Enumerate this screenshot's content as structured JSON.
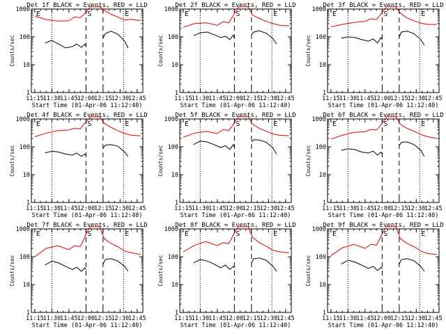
{
  "chart_data": [
    {
      "title": "Det 1f BLACK = Events, RED = LLD",
      "type": "line",
      "xlabel": "Start Time (01-Apr-06 11:12:40)",
      "ylabel": "Counts/sec",
      "xticks": [
        "11:15",
        "11:30",
        "11:45",
        "12:00",
        "12:15",
        "12:30",
        "12:45"
      ],
      "yticks": [
        "1",
        "10",
        "100",
        "1000"
      ],
      "ylim": [
        1,
        1000
      ],
      "yscale": "log",
      "markers": [
        {
          "label": "E",
          "x": "11:15"
        },
        {
          "label": "S",
          "x": "12:00"
        },
        {
          "label": "E",
          "x": "12:33"
        }
      ],
      "series": [
        {
          "color": "#e00000",
          "x": [
            "11:15",
            "11:25",
            "11:35",
            "11:45",
            "11:50",
            "11:55",
            "11:58",
            "12:01",
            "12:04",
            "12:08",
            "12:12",
            "12:16",
            "12:22",
            "12:28",
            "12:34",
            "12:40",
            "12:48"
          ],
          "y": [
            560,
            420,
            370,
            380,
            520,
            490,
            640,
            850,
            1200,
            1200,
            1200,
            900,
            650,
            520,
            400,
            430,
            380
          ]
        },
        {
          "color": "#000000",
          "x": [
            "11:24",
            "11:30",
            "11:36",
            "11:42",
            "11:48",
            "11:52",
            "11:56",
            "11:59",
            "12:00",
            "12:15",
            "12:17",
            "12:22",
            "12:28",
            "12:34",
            "12:37"
          ],
          "y": [
            60,
            75,
            55,
            40,
            45,
            55,
            42,
            55,
            45,
            90,
            130,
            160,
            125,
            70,
            40
          ]
        }
      ]
    },
    {
      "title": "Det 2f BLACK = Events, RED = LLD",
      "type": "line",
      "xlabel": "Start Time (01-Apr-06 11:12:40)",
      "ylabel": "Counts/sec",
      "xticks": [
        "11:15",
        "11:30",
        "11:45",
        "12:00",
        "12:15",
        "12:30",
        "12:45"
      ],
      "yticks": [
        "1",
        "10",
        "100",
        "1000"
      ],
      "ylim": [
        1,
        1000
      ],
      "yscale": "log",
      "markers": [
        {
          "label": "E",
          "x": "11:15"
        },
        {
          "label": "S",
          "x": "12:00"
        },
        {
          "label": "E",
          "x": "12:33"
        }
      ],
      "series": [
        {
          "color": "#e00000",
          "x": [
            "11:15",
            "11:25",
            "11:35",
            "11:45",
            "11:50",
            "11:55",
            "11:58",
            "12:01",
            "12:04",
            "12:08",
            "12:12",
            "12:16",
            "12:22",
            "12:28",
            "12:34",
            "12:40",
            "12:48"
          ],
          "y": [
            220,
            300,
            320,
            260,
            350,
            320,
            500,
            800,
            1200,
            1200,
            1200,
            600,
            460,
            360,
            300,
            260,
            250
          ]
        },
        {
          "color": "#000000",
          "x": [
            "11:24",
            "11:30",
            "11:36",
            "11:42",
            "11:48",
            "11:52",
            "11:56",
            "11:59",
            "12:00",
            "12:15",
            "12:17",
            "12:22",
            "12:28",
            "12:34",
            "12:37"
          ],
          "y": [
            110,
            140,
            150,
            120,
            95,
            105,
            80,
            115,
            90,
            120,
            150,
            165,
            135,
            85,
            55
          ]
        }
      ]
    },
    {
      "title": "Det 3f BLACK = Events, RED = LLD",
      "type": "line",
      "xlabel": "Start Time (01-Apr-06 11:12:40)",
      "ylabel": "Counts/sec",
      "xticks": [
        "11:15",
        "11:30",
        "11:45",
        "12:00",
        "12:15",
        "12:30",
        "12:45"
      ],
      "yticks": [
        "1",
        "10",
        "100",
        "1000"
      ],
      "ylim": [
        1,
        1000
      ],
      "yscale": "log",
      "markers": [
        {
          "label": "E",
          "x": "11:15"
        },
        {
          "label": "S",
          "x": "12:00"
        },
        {
          "label": "E",
          "x": "12:33"
        }
      ],
      "series": [
        {
          "color": "#e00000",
          "x": [
            "11:15",
            "11:25",
            "11:35",
            "11:45",
            "11:50",
            "11:55",
            "11:58",
            "12:01",
            "12:04",
            "12:08",
            "12:12",
            "12:16",
            "12:22",
            "12:28",
            "12:34",
            "12:40",
            "12:48"
          ],
          "y": [
            230,
            280,
            330,
            360,
            450,
            420,
            600,
            850,
            1200,
            1200,
            1200,
            700,
            480,
            380,
            310,
            280,
            280
          ]
        },
        {
          "color": "#000000",
          "x": [
            "11:24",
            "11:30",
            "11:36",
            "11:42",
            "11:48",
            "11:52",
            "11:56",
            "11:59",
            "12:00",
            "12:15",
            "12:17",
            "12:22",
            "12:28",
            "12:34",
            "12:37"
          ],
          "y": [
            90,
            100,
            95,
            80,
            70,
            85,
            60,
            95,
            80,
            100,
            150,
            160,
            130,
            80,
            50
          ]
        }
      ]
    },
    {
      "title": "Det 4f BLACK = Events, RED = LLD",
      "type": "line",
      "xlabel": "Start Time (01-Apr-06 11:12:40)",
      "ylabel": "Counts/sec",
      "xticks": [
        "11:15",
        "11:30",
        "11:45",
        "12:00",
        "12:15",
        "12:30",
        "12:45"
      ],
      "yticks": [
        "1",
        "10",
        "100",
        "1000"
      ],
      "ylim": [
        1,
        1000
      ],
      "yscale": "log",
      "markers": [
        {
          "label": "E",
          "x": "11:15"
        },
        {
          "label": "S",
          "x": "12:00"
        },
        {
          "label": "E",
          "x": "12:33"
        }
      ],
      "series": [
        {
          "color": "#e00000",
          "x": [
            "11:15",
            "11:25",
            "11:35",
            "11:45",
            "11:50",
            "11:55",
            "11:58",
            "12:01",
            "12:04",
            "12:08",
            "12:12",
            "12:16",
            "12:22",
            "12:28",
            "12:34",
            "12:40",
            "12:48"
          ],
          "y": [
            230,
            310,
            380,
            400,
            470,
            440,
            650,
            850,
            1200,
            1200,
            1200,
            700,
            500,
            380,
            300,
            260,
            250
          ]
        },
        {
          "color": "#000000",
          "x": [
            "11:24",
            "11:30",
            "11:36",
            "11:42",
            "11:48",
            "11:52",
            "11:56",
            "11:59",
            "12:00",
            "12:15",
            "12:17",
            "12:22",
            "12:28",
            "12:34",
            "12:37"
          ],
          "y": [
            60,
            70,
            65,
            55,
            50,
            60,
            45,
            55,
            50,
            90,
            115,
            120,
            105,
            65,
            45
          ]
        }
      ]
    },
    {
      "title": "Det 5f BLACK = Events, RED = LLD",
      "type": "line",
      "xlabel": "Start Time (01-Apr-06 11:12:40)",
      "ylabel": "Counts/sec",
      "xticks": [
        "11:15",
        "11:30",
        "11:45",
        "12:00",
        "12:15",
        "12:30",
        "12:45"
      ],
      "yticks": [
        "1",
        "10",
        "100",
        "1000"
      ],
      "ylim": [
        1,
        1000
      ],
      "yscale": "log",
      "markers": [
        {
          "label": "E",
          "x": "11:15"
        },
        {
          "label": "S",
          "x": "12:00"
        },
        {
          "label": "E",
          "x": "12:33"
        }
      ],
      "series": [
        {
          "color": "#e00000",
          "x": [
            "11:15",
            "11:25",
            "11:35",
            "11:45",
            "11:50",
            "11:55",
            "11:58",
            "12:01",
            "12:04",
            "12:08",
            "12:12",
            "12:16",
            "12:22",
            "12:28",
            "12:34",
            "12:40",
            "12:48"
          ],
          "y": [
            220,
            310,
            360,
            300,
            420,
            380,
            560,
            850,
            1200,
            1200,
            1200,
            650,
            460,
            360,
            290,
            260,
            250
          ]
        },
        {
          "color": "#000000",
          "x": [
            "11:24",
            "11:30",
            "11:36",
            "11:42",
            "11:48",
            "11:52",
            "11:56",
            "11:59",
            "12:00",
            "12:15",
            "12:17",
            "12:22",
            "12:28",
            "12:34",
            "12:37"
          ],
          "y": [
            120,
            160,
            150,
            120,
            95,
            110,
            80,
            120,
            95,
            150,
            180,
            175,
            145,
            90,
            55
          ]
        }
      ]
    },
    {
      "title": "Det 6f BLACK = Events, RED = LLD",
      "type": "line",
      "xlabel": "Start Time (01-Apr-06 11:12:40)",
      "ylabel": "Counts/sec",
      "xticks": [
        "11:15",
        "11:30",
        "11:45",
        "12:00",
        "12:15",
        "12:30",
        "12:45"
      ],
      "yticks": [
        "1",
        "10",
        "100",
        "1000"
      ],
      "ylim": [
        1,
        1000
      ],
      "yscale": "log",
      "markers": [
        {
          "label": "E",
          "x": "11:15"
        },
        {
          "label": "S",
          "x": "12:00"
        },
        {
          "label": "E",
          "x": "12:33"
        }
      ],
      "series": [
        {
          "color": "#e00000",
          "x": [
            "11:15",
            "11:25",
            "11:35",
            "11:45",
            "11:50",
            "11:55",
            "11:58",
            "12:01",
            "12:04",
            "12:08",
            "12:12",
            "12:16",
            "12:22",
            "12:28",
            "12:34",
            "12:40",
            "12:48"
          ],
          "y": [
            190,
            260,
            330,
            350,
            420,
            400,
            550,
            800,
            1200,
            1200,
            1200,
            650,
            460,
            360,
            280,
            230,
            200
          ]
        },
        {
          "color": "#000000",
          "x": [
            "11:24",
            "11:30",
            "11:36",
            "11:42",
            "11:48",
            "11:52",
            "11:56",
            "11:59",
            "12:00",
            "12:15",
            "12:17",
            "12:22",
            "12:28",
            "12:34",
            "12:37"
          ],
          "y": [
            75,
            85,
            80,
            65,
            60,
            70,
            50,
            65,
            55,
            110,
            145,
            150,
            120,
            75,
            45
          ]
        }
      ]
    },
    {
      "title": "Det 7f BLACK = Events, RED = LLD",
      "type": "line",
      "xlabel": "Start Time (01-Apr-06 11:12:40)",
      "ylabel": "Counts/sec",
      "xticks": [
        "11:15",
        "11:30",
        "11:45",
        "12:00",
        "12:15",
        "12:30",
        "12:45"
      ],
      "yticks": [
        "1",
        "10",
        "100",
        "1000"
      ],
      "ylim": [
        1,
        1000
      ],
      "yscale": "log",
      "markers": [
        {
          "label": "E",
          "x": "11:15"
        },
        {
          "label": "S",
          "x": "12:00"
        },
        {
          "label": "E",
          "x": "12:33"
        }
      ],
      "series": [
        {
          "color": "#e00000",
          "x": [
            "11:15",
            "11:25",
            "11:35",
            "11:45",
            "11:50",
            "11:55",
            "11:58",
            "12:01",
            "12:04",
            "12:08",
            "12:12",
            "12:16",
            "12:22",
            "12:28",
            "12:34",
            "12:40",
            "12:48"
          ],
          "y": [
            100,
            200,
            250,
            180,
            250,
            230,
            400,
            800,
            1200,
            1200,
            1200,
            450,
            300,
            230,
            160,
            140,
            120
          ]
        },
        {
          "color": "#000000",
          "x": [
            "11:24",
            "11:30",
            "11:36",
            "11:42",
            "11:48",
            "11:52",
            "11:56",
            "11:59",
            "12:00",
            "12:15",
            "12:17",
            "12:22",
            "12:28",
            "12:34",
            "12:37"
          ],
          "y": [
            50,
            70,
            60,
            45,
            35,
            42,
            30,
            40,
            35,
            55,
            80,
            85,
            70,
            45,
            30
          ]
        }
      ]
    },
    {
      "title": "Det 8f BLACK = Events, RED = LLD",
      "type": "line",
      "xlabel": "Start Time (01-Apr-06 11:12:40)",
      "ylabel": "Counts/sec",
      "xticks": [
        "11:15",
        "11:30",
        "11:45",
        "12:00",
        "12:15",
        "12:30",
        "12:45"
      ],
      "yticks": [
        "1",
        "10",
        "100",
        "1000"
      ],
      "ylim": [
        1,
        1000
      ],
      "yscale": "log",
      "markers": [
        {
          "label": "E",
          "x": "11:15"
        },
        {
          "label": "S",
          "x": "12:00"
        },
        {
          "label": "E",
          "x": "12:33"
        }
      ],
      "series": [
        {
          "color": "#e00000",
          "x": [
            "11:15",
            "11:25",
            "11:35",
            "11:45",
            "11:50",
            "11:55",
            "11:58",
            "12:01",
            "12:04",
            "12:08",
            "12:12",
            "12:16",
            "12:22",
            "12:28",
            "12:34",
            "12:40",
            "12:48"
          ],
          "y": [
            150,
            260,
            350,
            250,
            320,
            300,
            500,
            850,
            1200,
            1200,
            1200,
            500,
            320,
            240,
            170,
            150,
            140
          ]
        },
        {
          "color": "#000000",
          "x": [
            "11:24",
            "11:30",
            "11:36",
            "11:42",
            "11:48",
            "11:52",
            "11:56",
            "11:59",
            "12:00",
            "12:15",
            "12:17",
            "12:22",
            "12:28",
            "12:34",
            "12:37"
          ],
          "y": [
            60,
            80,
            70,
            55,
            40,
            50,
            35,
            45,
            40,
            60,
            85,
            90,
            75,
            45,
            30
          ]
        }
      ]
    },
    {
      "title": "Det 9f BLACK = Events, RED = LLD",
      "type": "line",
      "xlabel": "Start Time (01-Apr-06 11:12:40)",
      "ylabel": "Counts/sec",
      "xticks": [
        "11:15",
        "11:30",
        "11:45",
        "12:00",
        "12:15",
        "12:30",
        "12:45"
      ],
      "yticks": [
        "1",
        "10",
        "100",
        "1000"
      ],
      "ylim": [
        1,
        1000
      ],
      "yscale": "log",
      "markers": [
        {
          "label": "E",
          "x": "11:15"
        },
        {
          "label": "S",
          "x": "12:00"
        },
        {
          "label": "E",
          "x": "12:33"
        }
      ],
      "series": [
        {
          "color": "#e00000",
          "x": [
            "11:15",
            "11:25",
            "11:35",
            "11:45",
            "11:50",
            "11:55",
            "11:58",
            "12:01",
            "12:04",
            "12:08",
            "12:12",
            "12:16",
            "12:22",
            "12:28",
            "12:34",
            "12:40",
            "12:48"
          ],
          "y": [
            110,
            210,
            280,
            200,
            280,
            260,
            450,
            800,
            1200,
            1200,
            1200,
            450,
            300,
            230,
            160,
            130,
            120
          ]
        },
        {
          "color": "#000000",
          "x": [
            "11:24",
            "11:30",
            "11:36",
            "11:42",
            "11:48",
            "11:52",
            "11:56",
            "11:59",
            "12:00",
            "12:15",
            "12:17",
            "12:22",
            "12:28",
            "12:34",
            "12:37"
          ],
          "y": [
            55,
            75,
            65,
            50,
            38,
            45,
            32,
            42,
            36,
            55,
            80,
            85,
            72,
            45,
            30
          ]
        }
      ]
    }
  ]
}
